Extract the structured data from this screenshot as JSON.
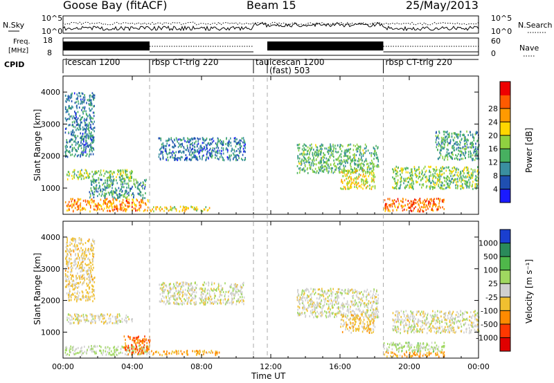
{
  "header": {
    "station": "Goose Bay (fitACF)",
    "beam": "Beam 15",
    "date": "25/May/2013"
  },
  "top_panels": {
    "nsky_label": "N.Sky",
    "nsearch_label": "N.Search",
    "freq_label_line1": "Freq.",
    "freq_label_line2": "[MHz]",
    "nave_label": "Nave",
    "cpid_label": "CPID",
    "noise_ticks_left": [
      "10^5",
      "10^0"
    ],
    "noise_ticks_right": [
      "10^5",
      "10^0"
    ],
    "freq_ticks": [
      "18",
      "8"
    ],
    "nave_ticks": [
      "60",
      "0"
    ]
  },
  "cpid_segments": [
    {
      "label": "icescan 1200",
      "start_h": 0.0,
      "end_h": 5.0
    },
    {
      "label": "rbsp CT-trig 220",
      "start_h": 5.0,
      "end_h": 11.0
    },
    {
      "label": "tau",
      "start_h": 11.0,
      "end_h": 11.8
    },
    {
      "label": "icescan 1200",
      "start_h": 11.8,
      "end_h": 18.5
    },
    {
      "label": "(fast) 503",
      "start_h": 11.8,
      "end_h": 18.5
    },
    {
      "label": "rbsp CT-trig 220",
      "start_h": 18.5,
      "end_h": 24.0
    }
  ],
  "axes": {
    "ylabel": "Slant Range [km]",
    "yticks": [
      "1000",
      "2000",
      "3000",
      "4000"
    ],
    "xticks": [
      "00:00",
      "04:00",
      "08:00",
      "12:00",
      "16:00",
      "20:00",
      "00:00"
    ],
    "xlabel": "Time UT"
  },
  "colorbars": {
    "power_title": "Power [dB]",
    "power_ticks": [
      "4",
      "8",
      "12",
      "16",
      "20",
      "24",
      "28"
    ],
    "power_colors": [
      "#1a1aff",
      "#1f4fb0",
      "#3a8fa0",
      "#47b060",
      "#8fd140",
      "#ffd600",
      "#ff9a00",
      "#ff5a00",
      "#ee0000"
    ],
    "velocity_title": "Velocity [m s⁻¹]",
    "velocity_ticks": [
      "1000",
      "500",
      "100",
      "25",
      "-25",
      "-100",
      "-500",
      "-1000"
    ],
    "velocity_colors": [
      "#1a3fd0",
      "#2a8a5a",
      "#4fb84a",
      "#a0d860",
      "#d0d0d0",
      "#f0c030",
      "#ff8a00",
      "#ff3800",
      "#e00000"
    ]
  },
  "chart_data": [
    {
      "type": "heatmap",
      "title": "Power [dB]",
      "xlabel": "Time UT",
      "ylabel": "Slant Range [km]",
      "xlim": [
        0,
        24
      ],
      "ylim": [
        180,
        4500
      ],
      "colorscale_range": [
        0,
        30
      ],
      "cells": [
        {
          "t": [
            0.1,
            1.8
          ],
          "r": [
            2000,
            4000
          ],
          "z": 8
        },
        {
          "t": [
            0.2,
            4.0
          ],
          "r": [
            1300,
            1600
          ],
          "z": 14
        },
        {
          "t": [
            0.1,
            4.9
          ],
          "r": [
            300,
            700
          ],
          "z": 22
        },
        {
          "t": [
            1.5,
            4.8
          ],
          "r": [
            700,
            1300
          ],
          "z": 10
        },
        {
          "t": [
            5.5,
            10.5
          ],
          "r": [
            1900,
            2600
          ],
          "z": 7
        },
        {
          "t": [
            5.0,
            8.5
          ],
          "r": [
            300,
            450
          ],
          "z": 18
        },
        {
          "t": [
            13.5,
            18.2
          ],
          "r": [
            1500,
            2400
          ],
          "z": 12
        },
        {
          "t": [
            16.0,
            18.0
          ],
          "r": [
            1000,
            1600
          ],
          "z": 18
        },
        {
          "t": [
            18.5,
            22.0
          ],
          "r": [
            300,
            700
          ],
          "z": 24
        },
        {
          "t": [
            19.0,
            24.0
          ],
          "r": [
            1000,
            1700
          ],
          "z": 14
        },
        {
          "t": [
            21.5,
            24.0
          ],
          "r": [
            1900,
            2800
          ],
          "z": 10
        }
      ]
    },
    {
      "type": "heatmap",
      "title": "Velocity [m s⁻¹]",
      "xlabel": "Time UT",
      "ylabel": "Slant Range [km]",
      "xlim": [
        0,
        24
      ],
      "ylim": [
        180,
        4500
      ],
      "colorscale_range": [
        -1000,
        1000
      ],
      "cells": [
        {
          "t": [
            0.1,
            1.8
          ],
          "r": [
            2000,
            4000
          ],
          "z": -150
        },
        {
          "t": [
            0.2,
            4.0
          ],
          "r": [
            1300,
            1600
          ],
          "z": 0
        },
        {
          "t": [
            0.1,
            4.9
          ],
          "r": [
            300,
            600
          ],
          "z": 120
        },
        {
          "t": [
            3.5,
            5.0
          ],
          "r": [
            300,
            900
          ],
          "z": -500
        },
        {
          "t": [
            5.0,
            9.0
          ],
          "r": [
            300,
            450
          ],
          "z": -300
        },
        {
          "t": [
            5.5,
            10.5
          ],
          "r": [
            1900,
            2600
          ],
          "z": 0
        },
        {
          "t": [
            13.5,
            18.2
          ],
          "r": [
            1500,
            2400
          ],
          "z": 0
        },
        {
          "t": [
            16.0,
            18.0
          ],
          "r": [
            1000,
            1600
          ],
          "z": -200
        },
        {
          "t": [
            18.5,
            22.0
          ],
          "r": [
            400,
            700
          ],
          "z": 150
        },
        {
          "t": [
            18.5,
            22.0
          ],
          "r": [
            250,
            400
          ],
          "z": -300
        },
        {
          "t": [
            19.0,
            24.0
          ],
          "r": [
            1000,
            1700
          ],
          "z": 0
        }
      ]
    }
  ]
}
